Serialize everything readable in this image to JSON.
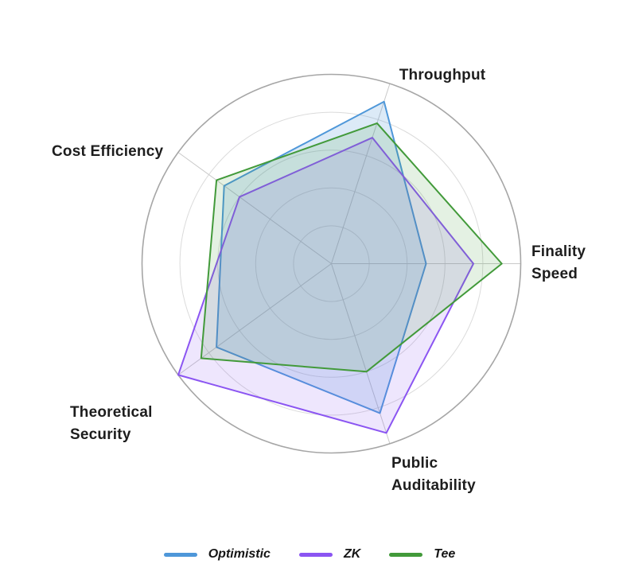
{
  "chart_data": {
    "type": "radar",
    "title": "",
    "categories": [
      "Throughput",
      "Finality Speed",
      "Public Auditability",
      "Theoretical Security",
      "Cost Efficiency"
    ],
    "axes": [
      {
        "angle_deg": 72,
        "lines": [
          "Throughput"
        ]
      },
      {
        "angle_deg": 0,
        "lines": [
          "Finality",
          "Speed"
        ]
      },
      {
        "angle_deg": 288,
        "lines": [
          "Public",
          "Auditability"
        ]
      },
      {
        "angle_deg": 216,
        "lines": [
          "Theoretical",
          "Security"
        ]
      },
      {
        "angle_deg": 144,
        "lines": [
          "Cost",
          "Efficiency"
        ]
      }
    ],
    "scale": {
      "min": 0,
      "max": 10,
      "ring_count": 5,
      "gridlines": "circular",
      "tick_labels_visible": false
    },
    "series": [
      {
        "name": "Optimistic",
        "color": "#4E97D9",
        "fill_opacity": 0.2,
        "values": [
          9,
          5,
          8.3,
          7.5,
          7
        ]
      },
      {
        "name": "ZK",
        "color": "#8B55F2",
        "fill_opacity": 0.15,
        "values": [
          7,
          7.5,
          9.4,
          10,
          6
        ]
      },
      {
        "name": "Tee",
        "color": "#429A3A",
        "fill_opacity": 0.14,
        "values": [
          7.8,
          9,
          6,
          8.5,
          7.5
        ]
      }
    ],
    "legend_position": "bottom",
    "grid_colors": {
      "outer_circle": "#a6a6a6",
      "inner_rings": "#dbdbdb",
      "spokes": "#c9c9c9"
    },
    "label_color": "#1d1d1d",
    "background": "#ffffff"
  }
}
